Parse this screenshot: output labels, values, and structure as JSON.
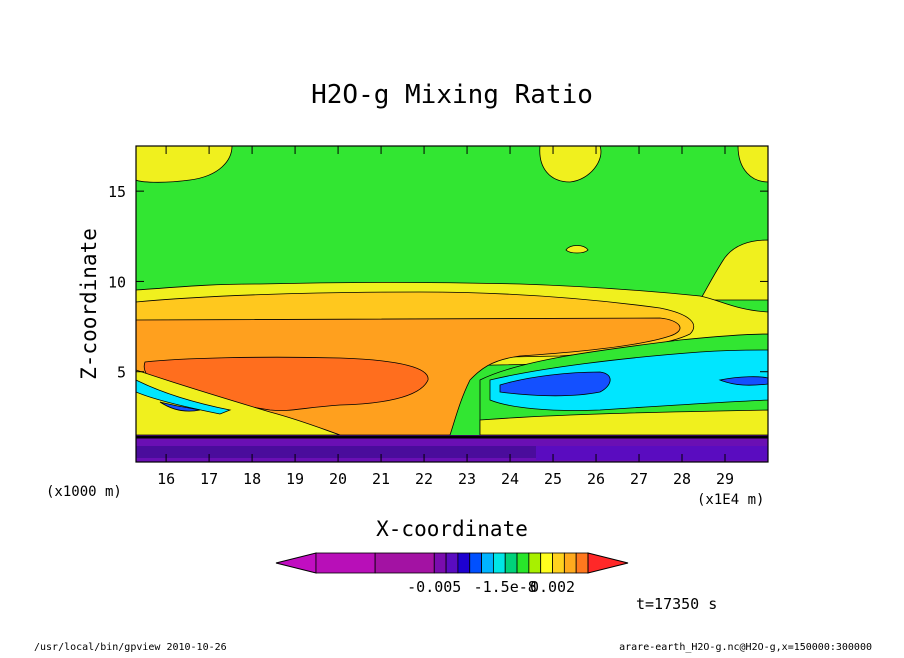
{
  "chart_data": {
    "type": "contour",
    "title": "H2O-g Mixing Ratio",
    "xlabel": "X-coordinate",
    "ylabel": "Z-coordinate",
    "x_unit": "(x1E4 m)",
    "y_unit": "(x1000 m)",
    "xlim": [
      15.3,
      30.0
    ],
    "ylim": [
      0.0,
      17.5
    ],
    "x_ticks": [
      16,
      17,
      18,
      19,
      20,
      21,
      22,
      23,
      24,
      25,
      26,
      27,
      28,
      29
    ],
    "y_ticks": [
      5,
      10,
      15
    ],
    "colorbar": {
      "tick_labels": [
        "-0.005",
        "-1.5e-8",
        "0.002"
      ],
      "colors": [
        "#c10ec1",
        "#b80fb8",
        "#a312a3",
        "#7a0cae",
        "#5a0cc0",
        "#1d00d0",
        "#0050ff",
        "#00b4ff",
        "#00e6e6",
        "#00d27a",
        "#28e62a",
        "#a8f000",
        "#ffff1e",
        "#ffd21e",
        "#ffaa1e",
        "#ff781e",
        "#ff2828"
      ]
    },
    "annotations": [
      "t=17350 s"
    ]
  },
  "footer": {
    "left": "/usr/local/bin/gpview  2010-10-26",
    "right": "arare-earth_H2O-g.nc@H2O-g,x=150000:300000"
  },
  "colors": {
    "green": "#32e632",
    "yellow": "#f0f01e",
    "light_orange": "#ffc81e",
    "orange": "#ffa01e",
    "dark_orange": "#ff6e1e",
    "cyan": "#00e6ff",
    "blue": "#1450ff",
    "purple": "#6a0fb4",
    "dark_purple": "#4a0c9c"
  }
}
